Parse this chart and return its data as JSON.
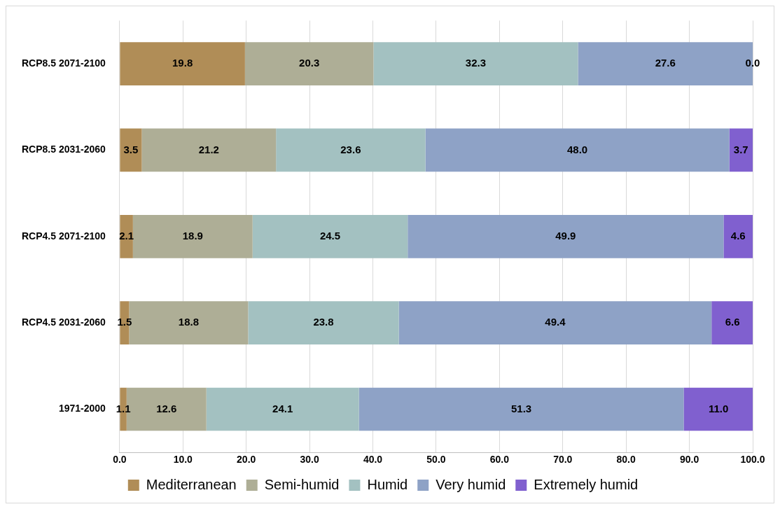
{
  "chart_data": {
    "type": "bar",
    "orientation": "horizontal",
    "stacked": true,
    "categories": [
      "RCP8.5 2071-2100",
      "RCP8.5 2031-2060",
      "RCP4.5 2071-2100",
      "RCP4.5 2031-2060",
      "1971-2000"
    ],
    "series": [
      {
        "name": "Mediterranean",
        "color": "#b08d57",
        "values": [
          19.8,
          3.5,
          2.1,
          1.5,
          1.1
        ],
        "value_labels": [
          "19.8",
          "3.5",
          "2.1",
          "1.5",
          "1.1"
        ]
      },
      {
        "name": "Semi-humid",
        "color": "#aeae96",
        "values": [
          20.3,
          21.2,
          18.9,
          18.8,
          12.6
        ],
        "value_labels": [
          "20.3",
          "21.2",
          "18.9",
          "18.8",
          "12.6"
        ]
      },
      {
        "name": "Humid",
        "color": "#a3c1c1",
        "values": [
          32.3,
          23.6,
          24.5,
          23.8,
          24.1
        ],
        "value_labels": [
          "32.3",
          "23.6",
          "24.5",
          "23.8",
          "24.1"
        ]
      },
      {
        "name": "Very humid",
        "color": "#8ea2c6",
        "values": [
          27.6,
          48.0,
          49.9,
          49.4,
          51.3
        ],
        "value_labels": [
          "27.6",
          "48.0",
          "49.9",
          "49.4",
          "51.3"
        ]
      },
      {
        "name": "Extremely humid",
        "color": "#8060cf",
        "values": [
          0.0,
          3.7,
          4.6,
          6.6,
          11.0
        ],
        "value_labels": [
          "0.0",
          "3.7",
          "4.6",
          "6.6",
          "11.0"
        ]
      }
    ],
    "xlim": [
      0,
      100
    ],
    "xticks": [
      {
        "value": 0,
        "label": "0.0"
      },
      {
        "value": 10,
        "label": "10.0"
      },
      {
        "value": 20,
        "label": "20.0"
      },
      {
        "value": 30,
        "label": "30.0"
      },
      {
        "value": 40,
        "label": "40.0"
      },
      {
        "value": 50,
        "label": "50.0"
      },
      {
        "value": 60,
        "label": "60.0"
      },
      {
        "value": 70,
        "label": "70.0"
      },
      {
        "value": 80,
        "label": "80.0"
      },
      {
        "value": 90,
        "label": "90.0"
      },
      {
        "value": 100,
        "label": "100.0"
      }
    ],
    "grid": "x",
    "legend": "bottom"
  }
}
